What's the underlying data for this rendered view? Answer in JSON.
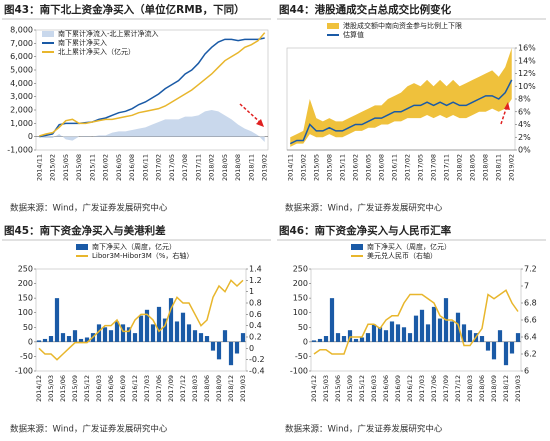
{
  "chart_data": [
    {
      "type": "line",
      "title": "图43：南下北上资金净买入（单位亿RMB，下同）",
      "source": "数据来源：Wind，广发证券发展研究中心",
      "legend": "top-left",
      "y_axis_side": "left",
      "categories": [
        "2014/11",
        null,
        "2015/02",
        null,
        "2015/05",
        null,
        "2015/08",
        null,
        "2015/11",
        null,
        "2016/02",
        null,
        "2016/05",
        null,
        "2016/08",
        null,
        "2016/11",
        null,
        "2017/02",
        null,
        "2017/05",
        null,
        "2017/08",
        null,
        "2017/11",
        null,
        "2018/02",
        null,
        "2018/05",
        null,
        "2018/08",
        null,
        "2018/11",
        null,
        "2019/02"
      ],
      "ylim": [
        -1000,
        8000
      ],
      "yticks": [
        {
          "value": -1000,
          "label": "-1,000"
        },
        0,
        {
          "value": 1000,
          "label": "1,000"
        },
        {
          "value": 2000,
          "label": "2,000"
        },
        {
          "value": 3000,
          "label": "3,000"
        },
        {
          "value": 4000,
          "label": "4,000"
        },
        {
          "value": 5000,
          "label": "5,000"
        },
        {
          "value": 6000,
          "label": "6,000"
        },
        {
          "value": 7000,
          "label": "7,000"
        },
        {
          "value": 8000,
          "label": "8,000"
        }
      ],
      "series": [
        {
          "name": "南下累计净流入-北上累计净流入",
          "type": "area",
          "color": "#c9d8ec",
          "values": [
            -50,
            -100,
            -100,
            200,
            -200,
            -300,
            0,
            50,
            0,
            100,
            100,
            300,
            400,
            400,
            500,
            600,
            700,
            900,
            1100,
            1300,
            1300,
            1300,
            1500,
            1500,
            1600,
            1900,
            2000,
            1900,
            1600,
            1300,
            900,
            600,
            400,
            100,
            -400
          ]
        },
        {
          "name": "南下累计净买入",
          "type": "line",
          "color": "#1a5aa6",
          "values": [
            0,
            100,
            200,
            900,
            1000,
            1000,
            1000,
            1050,
            1100,
            1300,
            1400,
            1600,
            1800,
            1900,
            2100,
            2400,
            2600,
            2900,
            3200,
            3600,
            3900,
            4200,
            4700,
            5000,
            5500,
            6200,
            6700,
            7100,
            7300,
            7300,
            7200,
            7300,
            7300,
            7300,
            7400
          ]
        },
        {
          "name": "北上累计净买入（亿元）",
          "type": "line",
          "color": "#e8b62c",
          "values": [
            50,
            200,
            300,
            700,
            1200,
            1300,
            1000,
            1000,
            1100,
            1200,
            1300,
            1300,
            1400,
            1500,
            1600,
            1800,
            1900,
            2000,
            2100,
            2300,
            2600,
            2900,
            3200,
            3500,
            3900,
            4300,
            4700,
            5200,
            5700,
            6000,
            6300,
            6700,
            6900,
            7200,
            7800
          ]
        }
      ]
    },
    {
      "type": "line",
      "title": "图44：港股通成交占总成交比例变化",
      "source": "数据来源：Wind，广发证券发展研究中心",
      "legend": "top",
      "y_axis_side": "right",
      "categories": [
        "2014/11",
        null,
        "2015/02",
        null,
        "2015/05",
        null,
        "2015/08",
        null,
        "2015/11",
        null,
        "2016/02",
        null,
        "2016/05",
        null,
        "2016/08",
        null,
        "2016/11",
        null,
        "2017/02",
        null,
        "2017/05",
        null,
        "2017/08",
        null,
        "2017/11",
        null,
        "2018/02",
        null,
        "2018/05",
        null,
        "2018/08",
        null,
        "2018/11",
        null,
        "2019/02"
      ],
      "ylim": [
        0,
        16
      ],
      "yticks": [
        {
          "value": 0,
          "label": "0%"
        },
        {
          "value": 2,
          "label": "2%"
        },
        {
          "value": 4,
          "label": "4%"
        },
        {
          "value": 6,
          "label": "6%"
        },
        {
          "value": 8,
          "label": "8%"
        },
        {
          "value": 10,
          "label": "10%"
        },
        {
          "value": 12,
          "label": "12%"
        },
        {
          "value": 14,
          "label": "14%"
        },
        {
          "value": 16,
          "label": "16%"
        }
      ],
      "series": [
        {
          "name": "港股成交额中南向资金参与比例上下限",
          "type": "band",
          "color": "#efc13c",
          "low": [
            0.5,
            1,
            1,
            2.5,
            2,
            2,
            2.5,
            2,
            2,
            2.5,
            3,
            3,
            3.5,
            3.5,
            4,
            4,
            4.5,
            4.5,
            5,
            5,
            5,
            5.5,
            5,
            5.5,
            5,
            5.5,
            5,
            5,
            5.5,
            6,
            6,
            6.5,
            6,
            6.5,
            8
          ],
          "high": [
            2,
            2.5,
            3,
            8,
            5,
            4.5,
            5,
            4.5,
            4.5,
            5,
            5.5,
            6,
            6.5,
            7,
            7,
            8,
            8.5,
            9,
            10,
            10.5,
            10,
            11,
            10,
            11,
            10,
            11,
            10,
            10.5,
            11,
            11.5,
            12,
            12.5,
            11.5,
            13,
            16
          ]
        },
        {
          "name": "估算值",
          "type": "line",
          "color": "#1a5aa6",
          "values": [
            1,
            1.5,
            1.5,
            4,
            3,
            3,
            3.5,
            3,
            3,
            3.5,
            4,
            4,
            4.5,
            5,
            5,
            5.5,
            6,
            6,
            6.5,
            7,
            7,
            7.5,
            7,
            7.5,
            7,
            7.5,
            7,
            7,
            7.5,
            8,
            8.5,
            8.5,
            8,
            9,
            11
          ]
        }
      ]
    },
    {
      "type": "bar",
      "title": "图45：南下资金净买入与美港利差",
      "source": "数据来源：Wind，广发证券发展研究中心",
      "legend": "top",
      "y_axis_side": "left",
      "categories": [
        "2014/12",
        null,
        "2015/03",
        null,
        "2015/06",
        null,
        "2015/09",
        null,
        "2015/12",
        null,
        "2016/03",
        null,
        "2016/06",
        null,
        "2016/09",
        null,
        "2016/12",
        null,
        "2017/03",
        null,
        "2017/06",
        null,
        "2017/09",
        null,
        "2017/12",
        null,
        "2018/03",
        null,
        "2018/06",
        null,
        "2018/09",
        null,
        "2018/12",
        null,
        "2019/03"
      ],
      "ylim": [
        -100,
        250
      ],
      "yticks": [
        -100,
        -50,
        0,
        50,
        100,
        150,
        200,
        250
      ],
      "y2lim": [
        -0.4,
        1.4
      ],
      "y2ticks": [
        -0.4,
        -0.2,
        0,
        0.2,
        0.4,
        0.6,
        0.8,
        1,
        1.2,
        1.4
      ],
      "series": [
        {
          "name": "南下净买入（周度，亿元）",
          "type": "bar",
          "color": "#1a5aa6",
          "values": [
            5,
            10,
            20,
            150,
            30,
            20,
            40,
            10,
            15,
            30,
            60,
            50,
            40,
            70,
            60,
            50,
            30,
            90,
            110,
            60,
            120,
            80,
            150,
            70,
            100,
            60,
            40,
            30,
            20,
            -30,
            -60,
            40,
            -80,
            -40,
            30
          ]
        },
        {
          "name": "Libor3M-Hibor3M（%，右轴）",
          "type": "line",
          "axis": "y2",
          "color": "#e8b62c",
          "values": [
            0,
            -0.1,
            -0.1,
            -0.2,
            -0.1,
            0,
            0.1,
            0.1,
            0.1,
            0.2,
            0.3,
            0.4,
            0.4,
            0.5,
            0.3,
            0.3,
            0.5,
            0.6,
            0.6,
            0.5,
            0.3,
            0.4,
            0.7,
            0.9,
            0.8,
            0.8,
            0.6,
            0.4,
            0.5,
            0.9,
            1.1,
            1,
            1.2,
            1.1,
            1.2
          ]
        }
      ]
    },
    {
      "type": "bar",
      "title": "图46：南下资金净买入与人民币汇率",
      "source": "数据来源：Wind，广发证券发展研究中心",
      "legend": "top",
      "y_axis_side": "left",
      "categories": [
        "2014/12",
        null,
        "2015/03",
        null,
        "2015/06",
        null,
        "2015/09",
        null,
        "2015/12",
        null,
        "2016/03",
        null,
        "2016/06",
        null,
        "2016/09",
        null,
        "2016/12",
        null,
        "2017/03",
        null,
        "2017/06",
        null,
        "2017/09",
        null,
        "2017/12",
        null,
        "2018/03",
        null,
        "2018/06",
        null,
        "2018/09",
        null,
        "2018/12",
        null,
        "2019/03"
      ],
      "ylim": [
        -100,
        250
      ],
      "yticks": [
        -100,
        -50,
        0,
        50,
        100,
        150,
        200,
        250
      ],
      "y2lim": [
        6,
        7.2
      ],
      "y2ticks": [
        6,
        6.2,
        6.4,
        6.6,
        6.8,
        7,
        7.2
      ],
      "series": [
        {
          "name": "南下净买入（周度，亿元）",
          "type": "bar",
          "color": "#1a5aa6",
          "values": [
            5,
            10,
            20,
            150,
            30,
            20,
            40,
            10,
            15,
            30,
            60,
            50,
            40,
            70,
            60,
            50,
            30,
            90,
            110,
            60,
            120,
            80,
            150,
            70,
            100,
            60,
            40,
            30,
            20,
            -30,
            -60,
            40,
            -80,
            -40,
            30
          ]
        },
        {
          "name": "美元兑人民币（右轴）",
          "type": "line",
          "axis": "y2",
          "color": "#e8b62c",
          "values": [
            6.2,
            6.25,
            6.25,
            6.2,
            6.2,
            6.2,
            6.4,
            6.4,
            6.4,
            6.55,
            6.55,
            6.5,
            6.6,
            6.65,
            6.65,
            6.8,
            6.9,
            6.9,
            6.9,
            6.85,
            6.8,
            6.65,
            6.6,
            6.6,
            6.55,
            6.3,
            6.3,
            6.4,
            6.5,
            6.9,
            6.85,
            6.9,
            6.95,
            6.8,
            6.7
          ]
        }
      ]
    }
  ]
}
